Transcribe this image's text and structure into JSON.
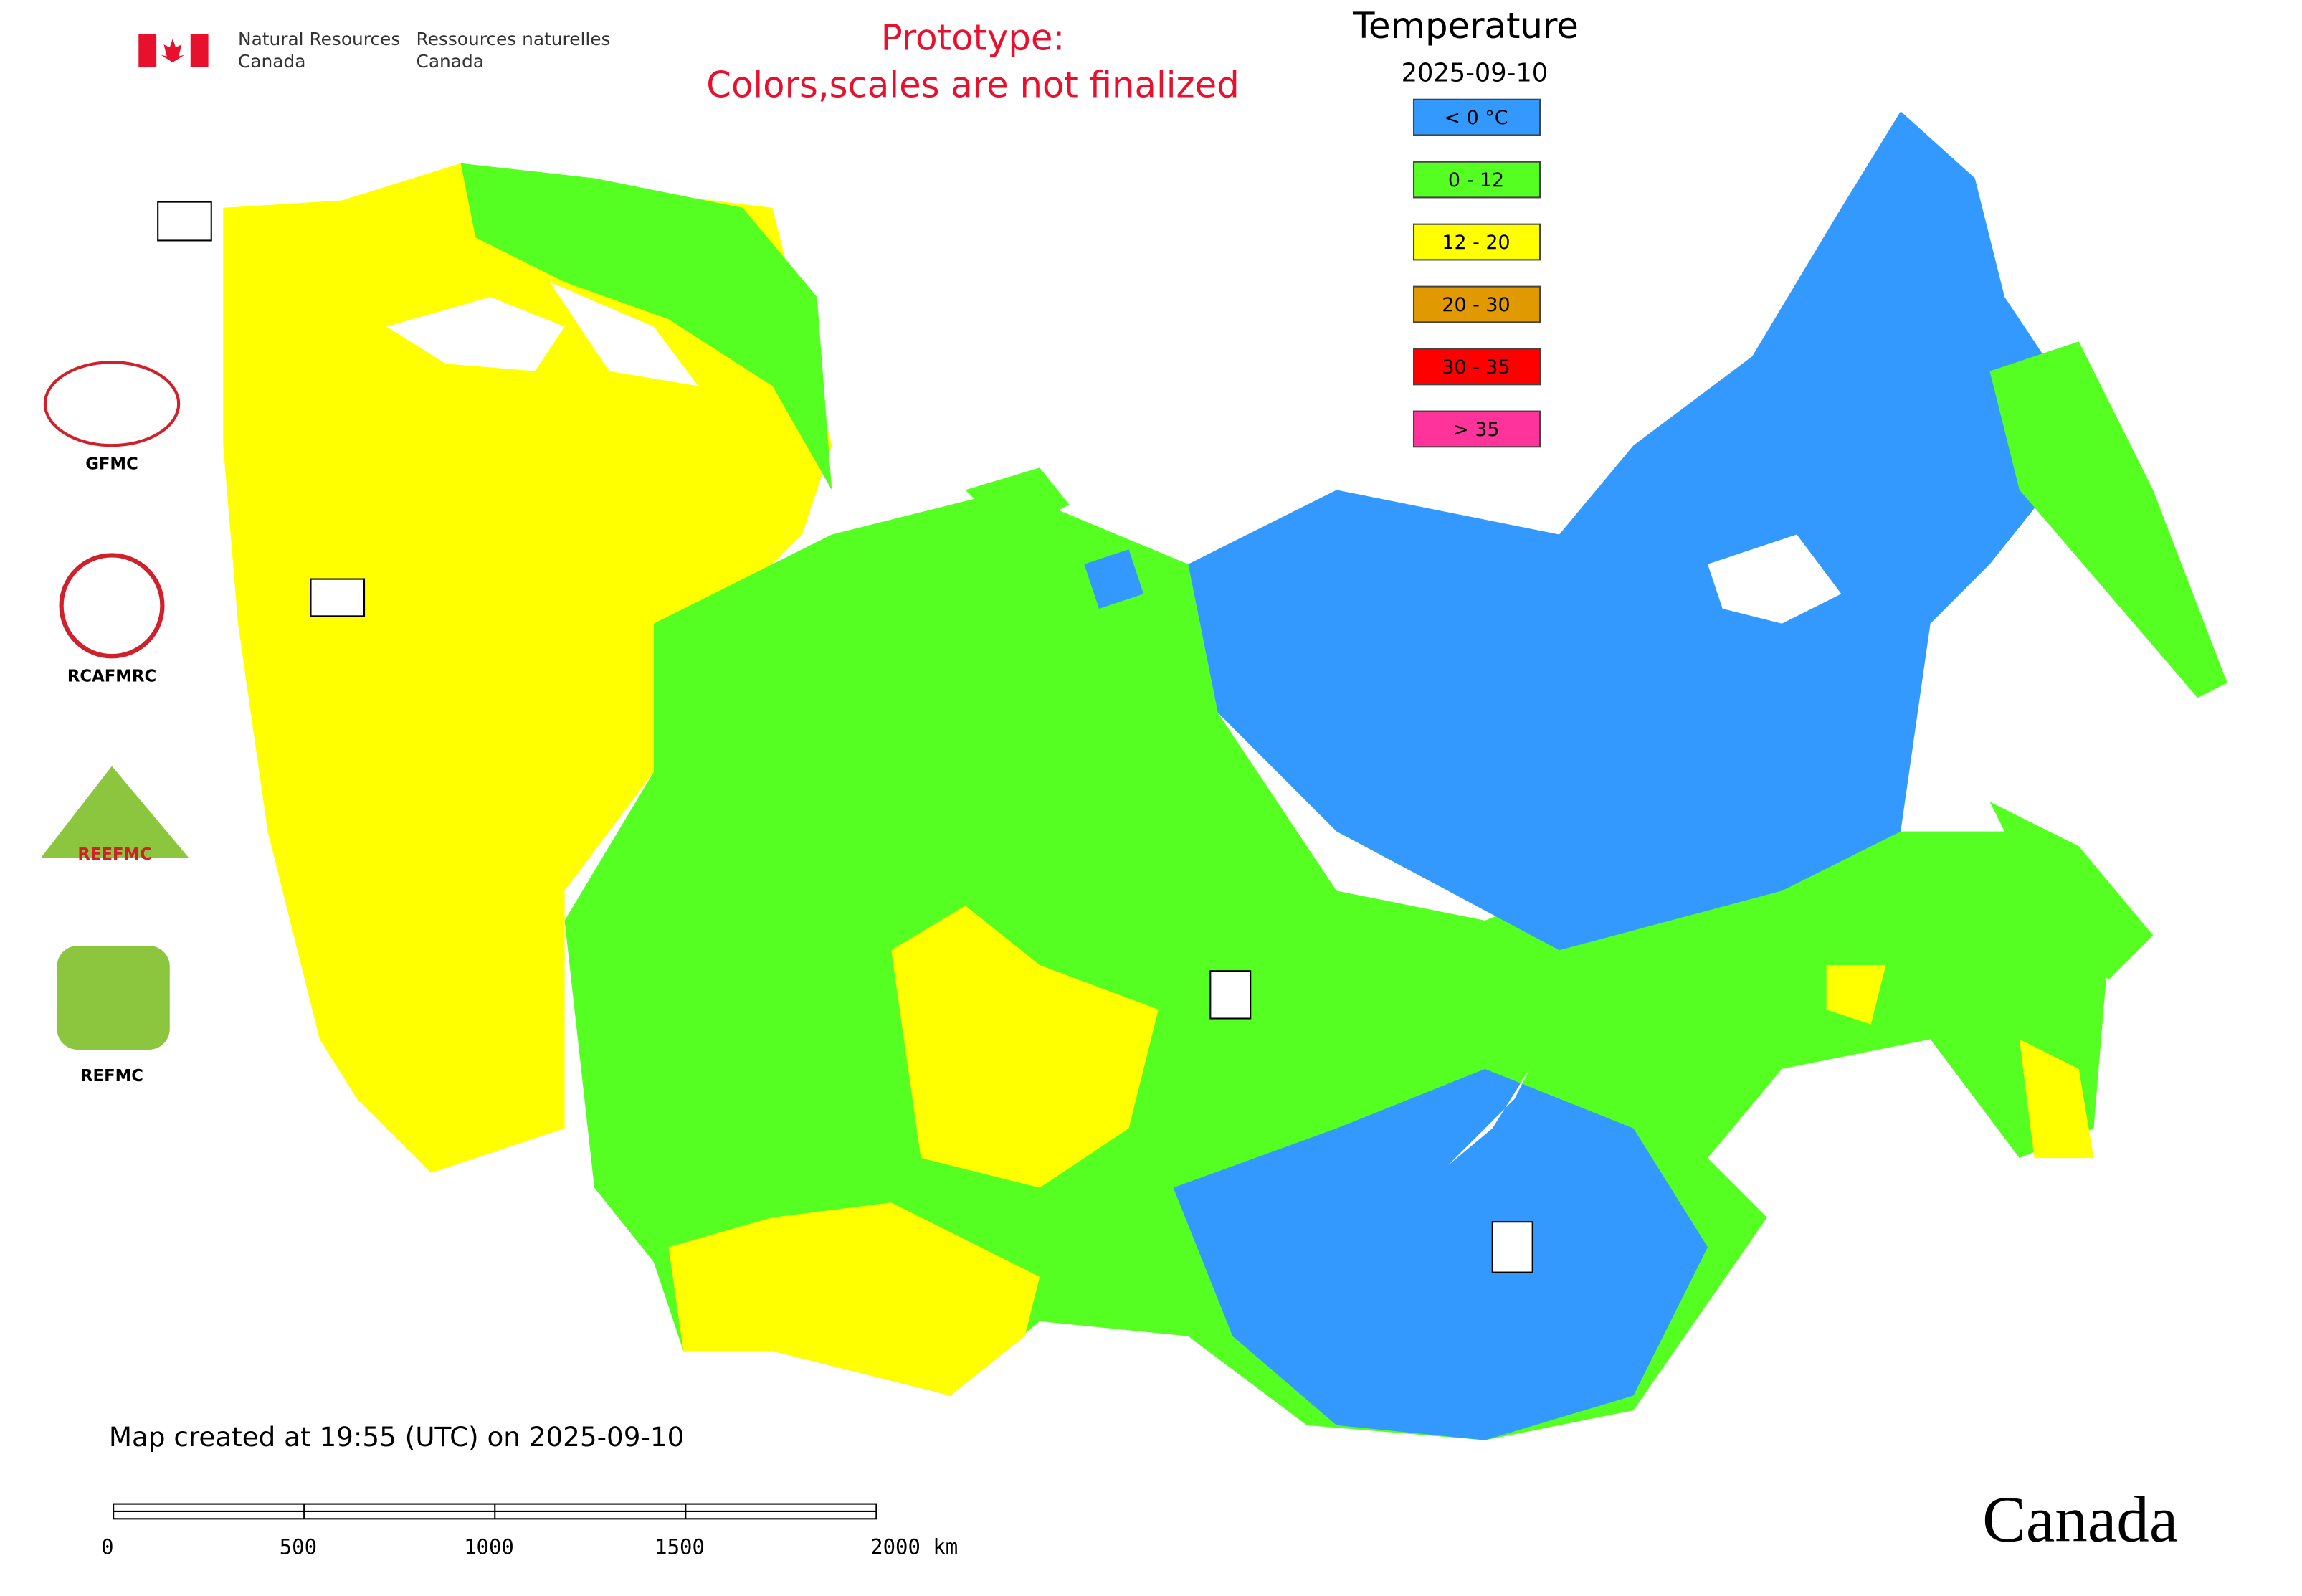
{
  "header": {
    "agency_en": [
      "Natural Resources",
      "Canada"
    ],
    "agency_fr": [
      "Ressources naturelles",
      "Canada"
    ]
  },
  "prototype_note": [
    "Prototype:",
    "Colors,scales are not finalized"
  ],
  "legend": {
    "title": "Temperature",
    "date": "2025-09-10",
    "items": [
      {
        "label": "< 0 °C",
        "color": "#3399ff"
      },
      {
        "label": "0 - 12",
        "color": "#55ff22"
      },
      {
        "label": "12 - 20",
        "color": "#ffff00"
      },
      {
        "label": "20 - 30",
        "color": "#e09a00"
      },
      {
        "label": "30 - 35",
        "color": "#ff0000"
      },
      {
        "label": "> 35",
        "color": "#ff3399"
      }
    ]
  },
  "logos": [
    "GFMC",
    "RCAFMRC",
    "REEFMC",
    "REFMC"
  ],
  "footer": {
    "created": "Map created at 19:55 (UTC) on 2025-09-10",
    "scale_labels": [
      "0",
      "500",
      "1000",
      "1500",
      "2000 km"
    ],
    "wordmark": "Canada"
  }
}
